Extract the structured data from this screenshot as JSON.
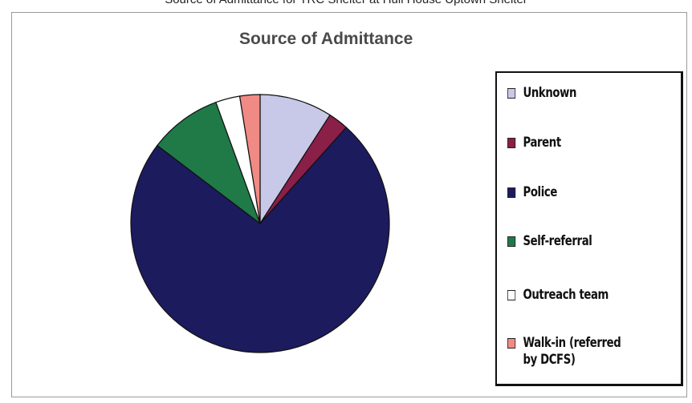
{
  "page_header": "Source of Admittance for TRC Shelter at Hull House Uptown Shelter",
  "chart_data": {
    "type": "pie",
    "title": "Source of Admittance",
    "legend_position": "right",
    "slices": [
      {
        "label": "Unknown",
        "value": 9,
        "color": "#c8c8e8"
      },
      {
        "label": "Parent",
        "value": 2.5,
        "color": "#8a1f48"
      },
      {
        "label": "Police",
        "value": 73,
        "color": "#1c1b5e"
      },
      {
        "label": "Self-referral",
        "value": 9,
        "color": "#1f7a48"
      },
      {
        "label": "Outreach team",
        "value": 3,
        "color": "#ffffff"
      },
      {
        "label": "Walk-in (referred by DCFS)",
        "value": 2.5,
        "color": "#f08a84"
      }
    ]
  }
}
